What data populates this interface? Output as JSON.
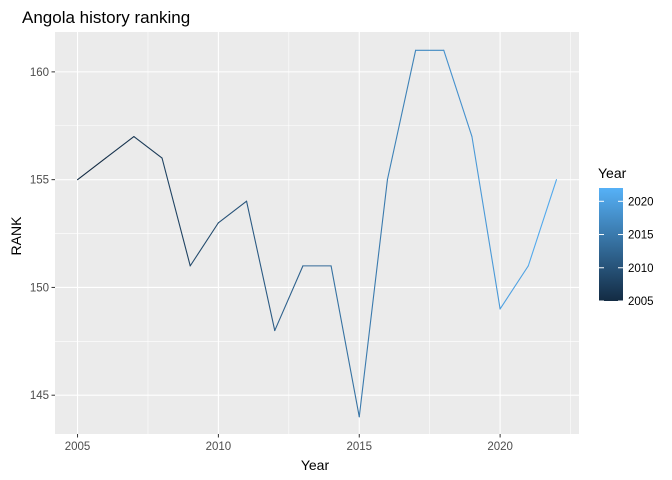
{
  "chart_data": {
    "type": "line",
    "title": "Angola history ranking",
    "xlabel": "Year",
    "ylabel": "RANK",
    "xlim": [
      2004.2,
      2022.8
    ],
    "ylim": [
      143.2,
      161.85
    ],
    "x_ticks": [
      2005,
      2010,
      2015,
      2020
    ],
    "y_ticks": [
      145,
      150,
      155,
      160
    ],
    "x": [
      2005,
      2006,
      2007,
      2008,
      2009,
      2010,
      2011,
      2012,
      2013,
      2014,
      2015,
      2016,
      2017,
      2018,
      2019,
      2020,
      2021,
      2022
    ],
    "series": [
      {
        "values": [
          155,
          156,
          157,
          156,
          151,
          153,
          154,
          148,
          151,
          151,
          144,
          155,
          161,
          161,
          157,
          149,
          151,
          155
        ]
      }
    ],
    "color_scale": {
      "low": "#132b43",
      "high": "#56b1f7",
      "domain": [
        2005,
        2022
      ],
      "breaks": [
        2005,
        2010,
        2015,
        2020
      ]
    },
    "legend": {
      "title": "Year",
      "placement": "right"
    },
    "grid": true,
    "panel_background": "#ebebeb",
    "grid_color": "#ffffff"
  }
}
